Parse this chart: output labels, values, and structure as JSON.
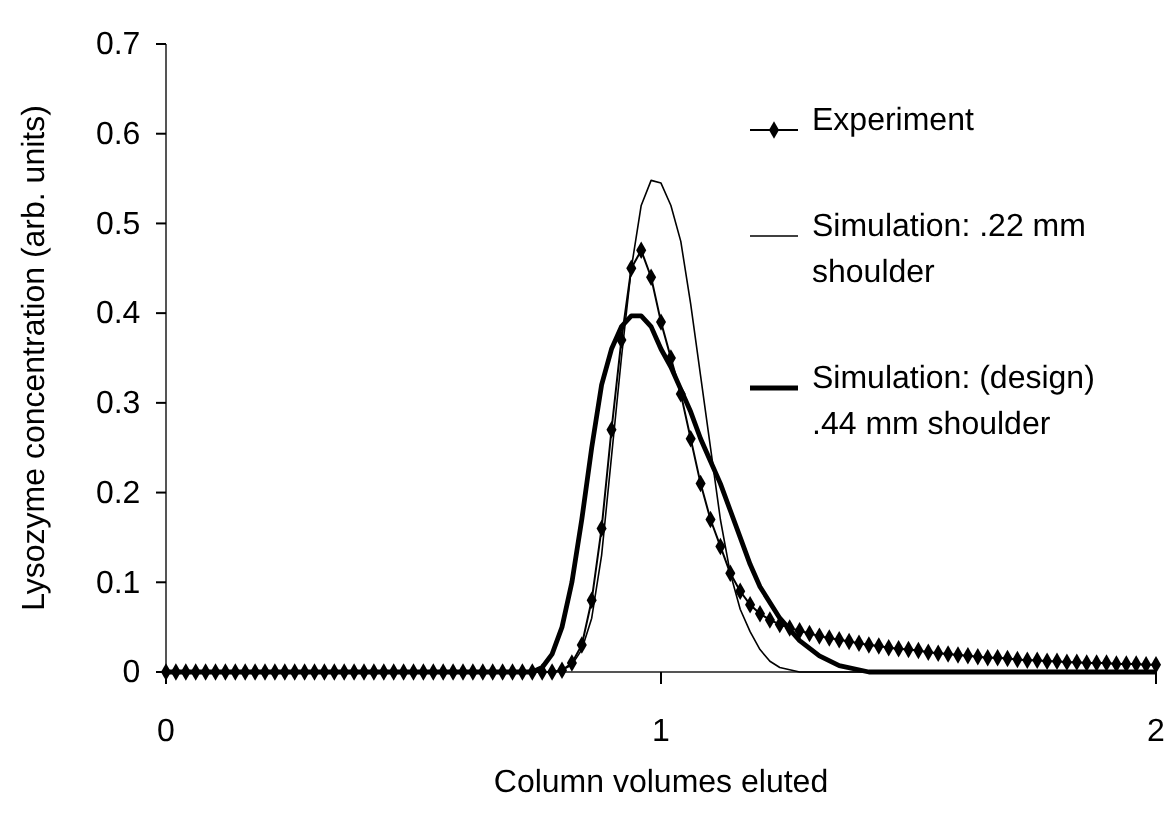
{
  "chart_data": {
    "type": "line",
    "xlabel": "Column volumes eluted",
    "ylabel": "Lysozyme concentration (arb. units)",
    "xlim": [
      0,
      2
    ],
    "xticks": [
      0,
      1,
      2
    ],
    "ylim": [
      0,
      0.7
    ],
    "yticks": [
      0,
      0.1,
      0.2,
      0.3,
      0.4,
      0.5,
      0.6,
      0.7
    ],
    "grid": false,
    "legend": "top right",
    "series": [
      {
        "name": "Experiment",
        "color": "#000000",
        "marker": "diamond",
        "x": [
          0,
          0.02,
          0.04,
          0.06,
          0.08,
          0.1,
          0.12,
          0.14,
          0.16,
          0.18,
          0.2,
          0.22,
          0.24,
          0.26,
          0.28,
          0.3,
          0.32,
          0.34,
          0.36,
          0.38,
          0.4,
          0.42,
          0.44,
          0.46,
          0.48,
          0.5,
          0.52,
          0.54,
          0.56,
          0.58,
          0.6,
          0.62,
          0.64,
          0.66,
          0.68,
          0.7,
          0.72,
          0.74,
          0.76,
          0.78,
          0.8,
          0.82,
          0.84,
          0.86,
          0.88,
          0.9,
          0.92,
          0.94,
          0.96,
          0.98,
          1,
          1.02,
          1.04,
          1.06,
          1.08,
          1.1,
          1.12,
          1.14,
          1.16,
          1.18,
          1.2,
          1.22,
          1.24,
          1.26,
          1.28,
          1.3,
          1.32,
          1.34,
          1.36,
          1.38,
          1.4,
          1.42,
          1.44,
          1.46,
          1.48,
          1.5,
          1.52,
          1.54,
          1.56,
          1.58,
          1.6,
          1.62,
          1.64,
          1.66,
          1.68,
          1.7,
          1.72,
          1.74,
          1.76,
          1.78,
          1.8,
          1.82,
          1.84,
          1.86,
          1.88,
          1.9,
          1.92,
          1.94,
          1.96,
          1.98,
          2
        ],
        "values": [
          0,
          0,
          0,
          0,
          0,
          0,
          0,
          0,
          0,
          0,
          0,
          0,
          0,
          0,
          0,
          0,
          0,
          0,
          0,
          0,
          0,
          0,
          0,
          0,
          0,
          0,
          0,
          0,
          0,
          0,
          0,
          0,
          0,
          0,
          0,
          0,
          0,
          0,
          0,
          0,
          0.002,
          0.01,
          0.03,
          0.08,
          0.16,
          0.27,
          0.37,
          0.45,
          0.47,
          0.44,
          0.39,
          0.35,
          0.31,
          0.26,
          0.21,
          0.17,
          0.14,
          0.11,
          0.09,
          0.075,
          0.065,
          0.058,
          0.053,
          0.049,
          0.046,
          0.043,
          0.04,
          0.038,
          0.036,
          0.034,
          0.032,
          0.03,
          0.029,
          0.027,
          0.026,
          0.025,
          0.024,
          0.022,
          0.021,
          0.02,
          0.019,
          0.018,
          0.017,
          0.016,
          0.016,
          0.015,
          0.014,
          0.013,
          0.013,
          0.012,
          0.012,
          0.011,
          0.011,
          0.01,
          0.01,
          0.01,
          0.009,
          0.009,
          0.009,
          0.008,
          0.008
        ]
      },
      {
        "name": "Simulation: .22 mm shoulder",
        "color": "#000000",
        "marker": "none",
        "x": [
          0,
          0.78,
          0.8,
          0.82,
          0.84,
          0.86,
          0.88,
          0.9,
          0.92,
          0.94,
          0.96,
          0.98,
          1,
          1.02,
          1.04,
          1.06,
          1.08,
          1.1,
          1.12,
          1.14,
          1.16,
          1.18,
          1.2,
          1.22,
          1.24,
          1.28,
          2
        ],
        "values": [
          0,
          0,
          0.002,
          0.008,
          0.025,
          0.06,
          0.13,
          0.24,
          0.35,
          0.45,
          0.52,
          0.548,
          0.545,
          0.52,
          0.48,
          0.41,
          0.33,
          0.25,
          0.17,
          0.11,
          0.07,
          0.045,
          0.025,
          0.012,
          0.005,
          0,
          0
        ]
      },
      {
        "name": "Simulation: (design) .44 mm shoulder",
        "color": "#000000",
        "marker": "none",
        "x": [
          0,
          0.74,
          0.76,
          0.78,
          0.8,
          0.82,
          0.84,
          0.86,
          0.88,
          0.9,
          0.92,
          0.94,
          0.96,
          0.98,
          1,
          1.02,
          1.04,
          1.06,
          1.08,
          1.1,
          1.12,
          1.14,
          1.16,
          1.18,
          1.2,
          1.24,
          1.28,
          1.32,
          1.36,
          1.42,
          2
        ],
        "values": [
          0,
          0,
          0.005,
          0.02,
          0.05,
          0.1,
          0.17,
          0.25,
          0.32,
          0.36,
          0.385,
          0.397,
          0.397,
          0.385,
          0.36,
          0.34,
          0.315,
          0.29,
          0.26,
          0.235,
          0.21,
          0.18,
          0.15,
          0.12,
          0.095,
          0.06,
          0.035,
          0.018,
          0.007,
          0,
          0
        ]
      }
    ]
  }
}
